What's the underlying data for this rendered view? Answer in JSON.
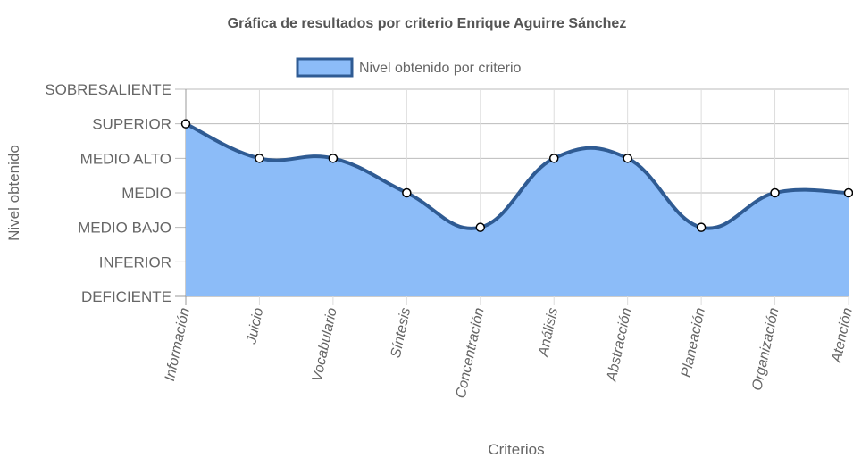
{
  "chart_data": {
    "type": "area",
    "title": "Gráfica de resultados por criterio Enrique Aguirre Sánchez",
    "xlabel": "Criterios",
    "ylabel": "Nivel obtenido",
    "categories": [
      "Información",
      "Juicio",
      "Vocabulario",
      "Síntesis",
      "Concentración",
      "Análisis",
      "Abstracción",
      "Planeación",
      "Organización",
      "Atención"
    ],
    "y_levels": [
      "DEFICIENTE",
      "INFERIOR",
      "MEDIO BAJO",
      "MEDIO",
      "MEDIO ALTO",
      "SUPERIOR",
      "SOBRESALIENTE"
    ],
    "ylim": [
      0,
      6
    ],
    "series": [
      {
        "name": "Nivel obtenido por criterio",
        "values": [
          5,
          4,
          4,
          3,
          2,
          4,
          4,
          2,
          3,
          3
        ],
        "fill_color": "#8cbcf8",
        "line_color": "#2f5b93"
      }
    ],
    "grid": true,
    "legend_position": "top"
  }
}
